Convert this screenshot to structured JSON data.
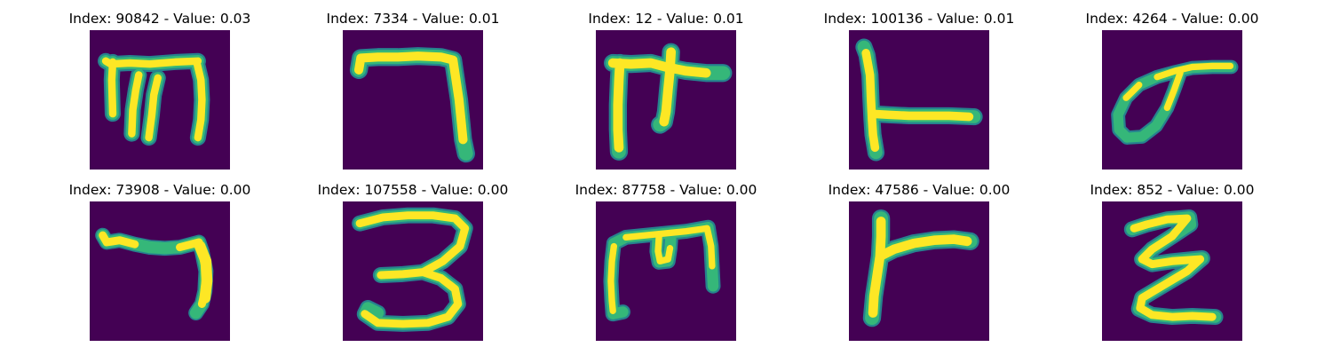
{
  "colors": {
    "background": "#440154",
    "stroke_core": "#fde725",
    "stroke_mid": "#b5de2b",
    "stroke_edge": "#35b779",
    "stroke_outer": "#26828e"
  },
  "panels": [
    {
      "title": "Index: 90842 - Value: 0.03",
      "glyph": "handwritten-m-like-glyph"
    },
    {
      "title": "Index: 7334 - Value: 0.01",
      "glyph": "handwritten-seven-like-glyph"
    },
    {
      "title": "Index: 12 - Value: 0.01",
      "glyph": "handwritten-pi-like-glyph"
    },
    {
      "title": "Index: 100136 - Value: 0.01",
      "glyph": "handwritten-l-like-glyph"
    },
    {
      "title": "Index: 4264 - Value: 0.00",
      "glyph": "handwritten-sigma-like-glyph"
    },
    {
      "title": "Index: 73908 - Value: 0.00",
      "glyph": "handwritten-seven-like-glyph"
    },
    {
      "title": "Index: 107558 - Value: 0.00",
      "glyph": "handwritten-three-like-glyph"
    },
    {
      "title": "Index: 87758 - Value: 0.00",
      "glyph": "handwritten-m-like-glyph"
    },
    {
      "title": "Index: 47586 - Value: 0.00",
      "glyph": "handwritten-y-like-glyph"
    },
    {
      "title": "Index: 852 - Value: 0.00",
      "glyph": "handwritten-z-like-glyph"
    }
  ]
}
